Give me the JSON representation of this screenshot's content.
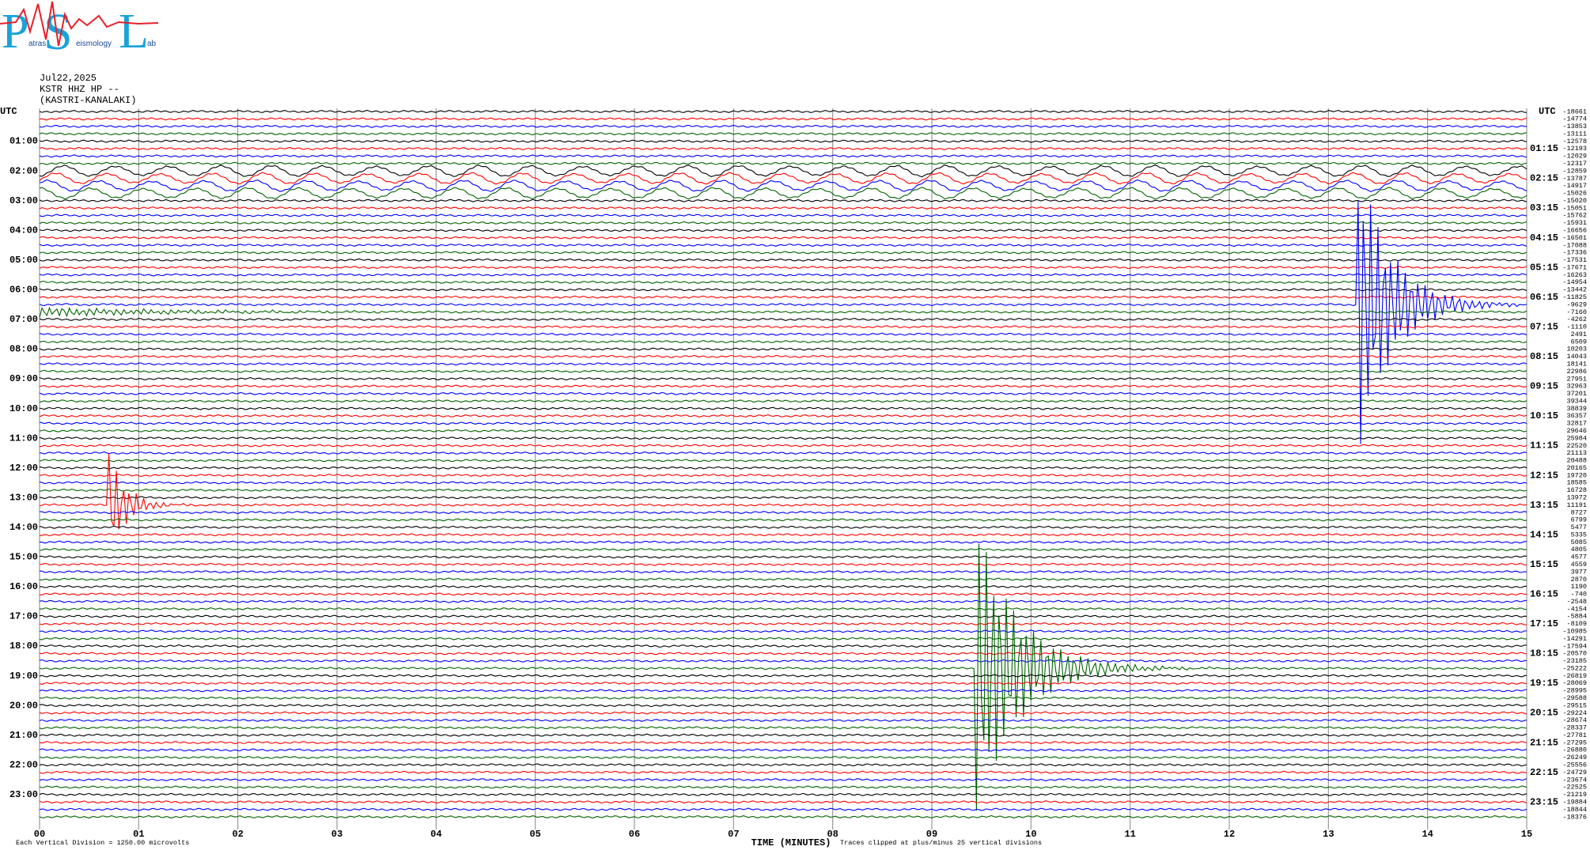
{
  "logo": {
    "big": [
      "P",
      "S",
      "L"
    ],
    "small": [
      "atras",
      "eismology",
      "ab"
    ]
  },
  "header": {
    "date": "Jul22,2025",
    "station": "KSTR HHZ HP --",
    "site": "(KASTRI-KANALAKI)"
  },
  "chart_data": {
    "type": "helicorder",
    "utc_label": "UTC",
    "colors": [
      "#000000",
      "#ff0000",
      "#0000ff",
      "#006400"
    ],
    "left_labels": [
      "01:00",
      "02:00",
      "03:00",
      "04:00",
      "05:00",
      "06:00",
      "07:00",
      "08:00",
      "09:00",
      "10:00",
      "11:00",
      "12:00",
      "13:00",
      "14:00",
      "15:00",
      "16:00",
      "17:00",
      "18:00",
      "19:00",
      "20:00",
      "21:00",
      "22:00",
      "23:00"
    ],
    "right_labels": [
      "01:15",
      "02:15",
      "03:15",
      "04:15",
      "05:15",
      "06:15",
      "07:15",
      "08:15",
      "09:15",
      "10:15",
      "11:15",
      "12:15",
      "13:15",
      "14:15",
      "15:15",
      "16:15",
      "17:15",
      "18:15",
      "19:15",
      "20:15",
      "21:15",
      "22:15",
      "23:15"
    ],
    "trace_offsets": [
      -18661,
      -14774,
      -13853,
      -13111,
      -12578,
      -12193,
      -12029,
      -12317,
      -12859,
      -13787,
      -14917,
      -15026,
      -15020,
      -15051,
      -15762,
      -15931,
      -16656,
      -16501,
      -17088,
      -17336,
      -17531,
      -17671,
      -16263,
      -14954,
      -13442,
      -11825,
      -9629,
      -7160,
      -4262,
      -1110,
      2491,
      6509,
      10203,
      14043,
      18141,
      22986,
      27951,
      32963,
      37201,
      39344,
      38839,
      36357,
      32817,
      29646,
      25984,
      22520,
      21113,
      20488,
      20165,
      19720,
      18585,
      16728,
      13972,
      11191,
      8727,
      6799,
      5477,
      5335,
      5085,
      4805,
      4577,
      4559,
      3977,
      2870,
      1190,
      -740,
      -2548,
      -4154,
      -5884,
      -8109,
      -10985,
      -14291,
      -17594,
      -20570,
      -23185,
      -25222,
      -26819,
      -28069,
      -28995,
      -29588,
      -29515,
      -29224,
      -28674,
      -28337,
      -27781,
      -27295,
      -26880,
      -26249,
      -25556,
      -24729,
      -23674,
      -22525,
      -21219,
      -19884,
      -18844,
      -18376
    ],
    "xlim": [
      0,
      15
    ],
    "xticks": [
      {
        "value": 0,
        "label": "00"
      },
      {
        "value": 1,
        "label": "01"
      },
      {
        "value": 2,
        "label": "02"
      },
      {
        "value": 3,
        "label": "03"
      },
      {
        "value": 4,
        "label": "04"
      },
      {
        "value": 5,
        "label": "05"
      },
      {
        "value": 6,
        "label": "06"
      },
      {
        "value": 7,
        "label": "07"
      },
      {
        "value": 8,
        "label": "08"
      },
      {
        "value": 9,
        "label": "09"
      },
      {
        "value": 10,
        "label": "10"
      },
      {
        "value": 11,
        "label": "11"
      },
      {
        "value": 12,
        "label": "12"
      },
      {
        "value": 13,
        "label": "13"
      },
      {
        "value": 14,
        "label": "14"
      },
      {
        "value": 15,
        "label": "15"
      }
    ],
    "xlabel": "TIME (MINUTES)",
    "scale_note": "Each Vertical Division = 1250.00 microvolts",
    "clip_note": "Traces clipped at plus/minus 25 vertical divisions"
  }
}
